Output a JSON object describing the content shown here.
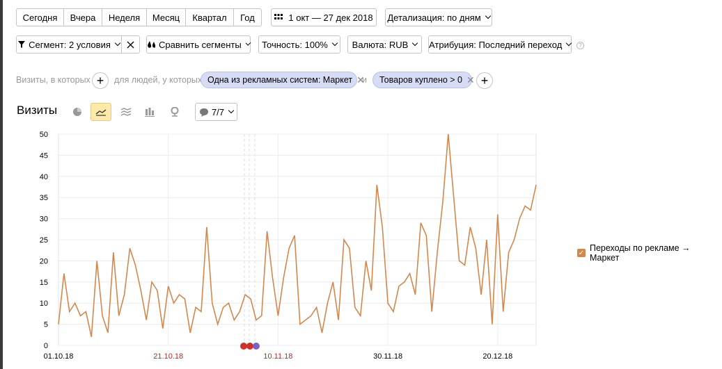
{
  "periods": [
    "Сегодня",
    "Вчера",
    "Неделя",
    "Месяц",
    "Квартал",
    "Год"
  ],
  "date_range": "1 окт — 27 дек 2018",
  "detail": "Детализация: по дням",
  "segment": "Сегмент: 2 условия",
  "compare": "Сравнить сегменты",
  "accuracy": "Точность: 100%",
  "currency": "Валюта: RUB",
  "attribution": "Атрибуция: Последний переход",
  "filter": {
    "visits_label": "Визиты, в которых",
    "people_label": "для людей, у которых",
    "chip1": "Одна из рекламных систем: Маркет",
    "and_label": "и",
    "chip2": "Товаров куплено > 0"
  },
  "chart_title": "Визиты",
  "annotations_count": "7/7",
  "legend_label": "Переходы по рекламе → Маркет",
  "chart_data": {
    "type": "line",
    "x": [
      "01.10.18",
      "02.10.18",
      "03.10.18",
      "04.10.18",
      "05.10.18",
      "06.10.18",
      "07.10.18",
      "08.10.18",
      "09.10.18",
      "10.10.18",
      "11.10.18",
      "12.10.18",
      "13.10.18",
      "14.10.18",
      "15.10.18",
      "16.10.18",
      "17.10.18",
      "18.10.18",
      "19.10.18",
      "20.10.18",
      "21.10.18",
      "22.10.18",
      "23.10.18",
      "24.10.18",
      "25.10.18",
      "26.10.18",
      "27.10.18",
      "28.10.18",
      "29.10.18",
      "30.10.18",
      "31.10.18",
      "01.11.18",
      "02.11.18",
      "03.11.18",
      "04.11.18",
      "05.11.18",
      "06.11.18",
      "07.11.18",
      "08.11.18",
      "09.11.18",
      "10.11.18",
      "11.11.18",
      "12.11.18",
      "13.11.18",
      "14.11.18",
      "15.11.18",
      "16.11.18",
      "17.11.18",
      "18.11.18",
      "19.11.18",
      "20.11.18",
      "21.11.18",
      "22.11.18",
      "23.11.18",
      "24.11.18",
      "25.11.18",
      "26.11.18",
      "27.11.18",
      "28.11.18",
      "29.11.18",
      "30.11.18",
      "01.12.18",
      "02.12.18",
      "03.12.18",
      "04.12.18",
      "05.12.18",
      "06.12.18",
      "07.12.18",
      "08.12.18",
      "09.12.18",
      "10.12.18",
      "11.12.18",
      "12.12.18",
      "13.12.18",
      "14.12.18",
      "15.12.18",
      "16.12.18",
      "17.12.18",
      "18.12.18",
      "19.12.18",
      "20.12.18",
      "21.12.18",
      "22.12.18",
      "23.12.18",
      "24.12.18",
      "25.12.18",
      "26.12.18",
      "27.12.18"
    ],
    "series": [
      {
        "name": "Переходы по рекламе → Маркет",
        "color": "#d4874b",
        "values": [
          5,
          17,
          8,
          10,
          7,
          8,
          2,
          20,
          7,
          3,
          22,
          7,
          12,
          23,
          19,
          13,
          6,
          15,
          13,
          4,
          14,
          10,
          12,
          11,
          3,
          9,
          8,
          28,
          10,
          5,
          9,
          10,
          6,
          8,
          12,
          11,
          6,
          7,
          27,
          16,
          7,
          16,
          23,
          26,
          5,
          6,
          7,
          9,
          3,
          10,
          15,
          6,
          25,
          23,
          9,
          7,
          20,
          13,
          38,
          28,
          10,
          8,
          14,
          15,
          17,
          12,
          29,
          26,
          8,
          22,
          34,
          50,
          35,
          20,
          19,
          28,
          23,
          12,
          25,
          5,
          31,
          8,
          22,
          25,
          30,
          33,
          32,
          38
        ]
      }
    ],
    "x_tick_labels": [
      "01.10.18",
      "21.10.18",
      "10.11.18",
      "30.11.18",
      "20.12.18"
    ],
    "x_tick_colors": [
      "#000000",
      "#c0271f",
      "#c0271f",
      "#000000",
      "#000000"
    ],
    "y_ticks": [
      0,
      5,
      10,
      15,
      20,
      25,
      30,
      35,
      40,
      45,
      50
    ],
    "ylim": [
      0,
      50
    ],
    "grid": true,
    "legend_position": "right"
  }
}
